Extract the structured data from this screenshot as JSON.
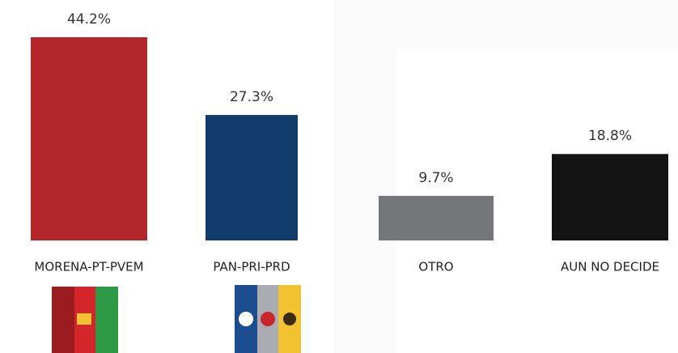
{
  "chart_data": {
    "type": "bar",
    "categories": [
      "MORENA-PT-PVEM",
      "PAN-PRI-PRD",
      "OTRO",
      "AUN NO DECIDE"
    ],
    "values": [
      44.2,
      27.3,
      9.7,
      18.8
    ],
    "value_labels": [
      "44.2%",
      "27.3%",
      "9.7%",
      "18.8%"
    ],
    "colors": [
      "#b3262b",
      "#123c6c",
      "#747679",
      "#141414"
    ]
  }
}
